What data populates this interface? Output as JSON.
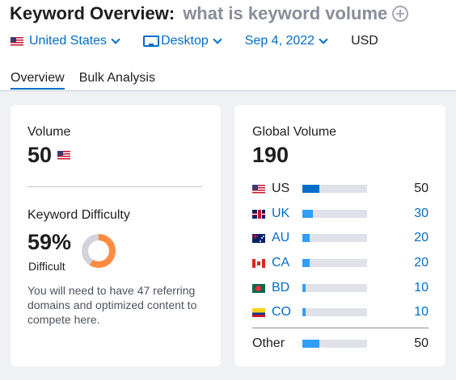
{
  "header": {
    "title": "Keyword Overview:",
    "keyword": "what is keyword volume",
    "filters": {
      "country": "United States",
      "device": "Desktop",
      "date": "Sep 4, 2022",
      "currency": "USD"
    },
    "tabs": [
      {
        "label": "Overview",
        "active": true
      },
      {
        "label": "Bulk Analysis",
        "active": false
      }
    ]
  },
  "volume_card": {
    "volume_label": "Volume",
    "volume_value": "50",
    "kd_label": "Keyword Difficulty",
    "kd_percent": "59%",
    "kd_value": 59,
    "kd_level": "Difficult",
    "kd_note": "You will need to have 47 referring domains and optimized content to compete here."
  },
  "global_card": {
    "label": "Global Volume",
    "value": "190",
    "countries": [
      {
        "flag": "us-flag-icon",
        "code": "US",
        "value": "50",
        "share": 0.26
      },
      {
        "flag": "uk-flag-icon",
        "code": "UK",
        "value": "30",
        "share": 0.16
      },
      {
        "flag": "au-flag-icon",
        "code": "AU",
        "value": "20",
        "share": 0.11
      },
      {
        "flag": "ca-flag-icon",
        "code": "CA",
        "value": "20",
        "share": 0.11
      },
      {
        "flag": "bd-flag-icon",
        "code": "BD",
        "value": "10",
        "share": 0.05
      },
      {
        "flag": "co-flag-icon",
        "code": "CO",
        "value": "10",
        "share": 0.05
      }
    ],
    "other": {
      "label": "Other",
      "value": "50",
      "share": 0.26
    }
  },
  "colors": {
    "accent": "#006dca",
    "bar_light": "#2e9fff",
    "bar_track": "#e0e1e9",
    "kd_orange": "#ff8c43",
    "kd_track": "#d1d4db"
  }
}
